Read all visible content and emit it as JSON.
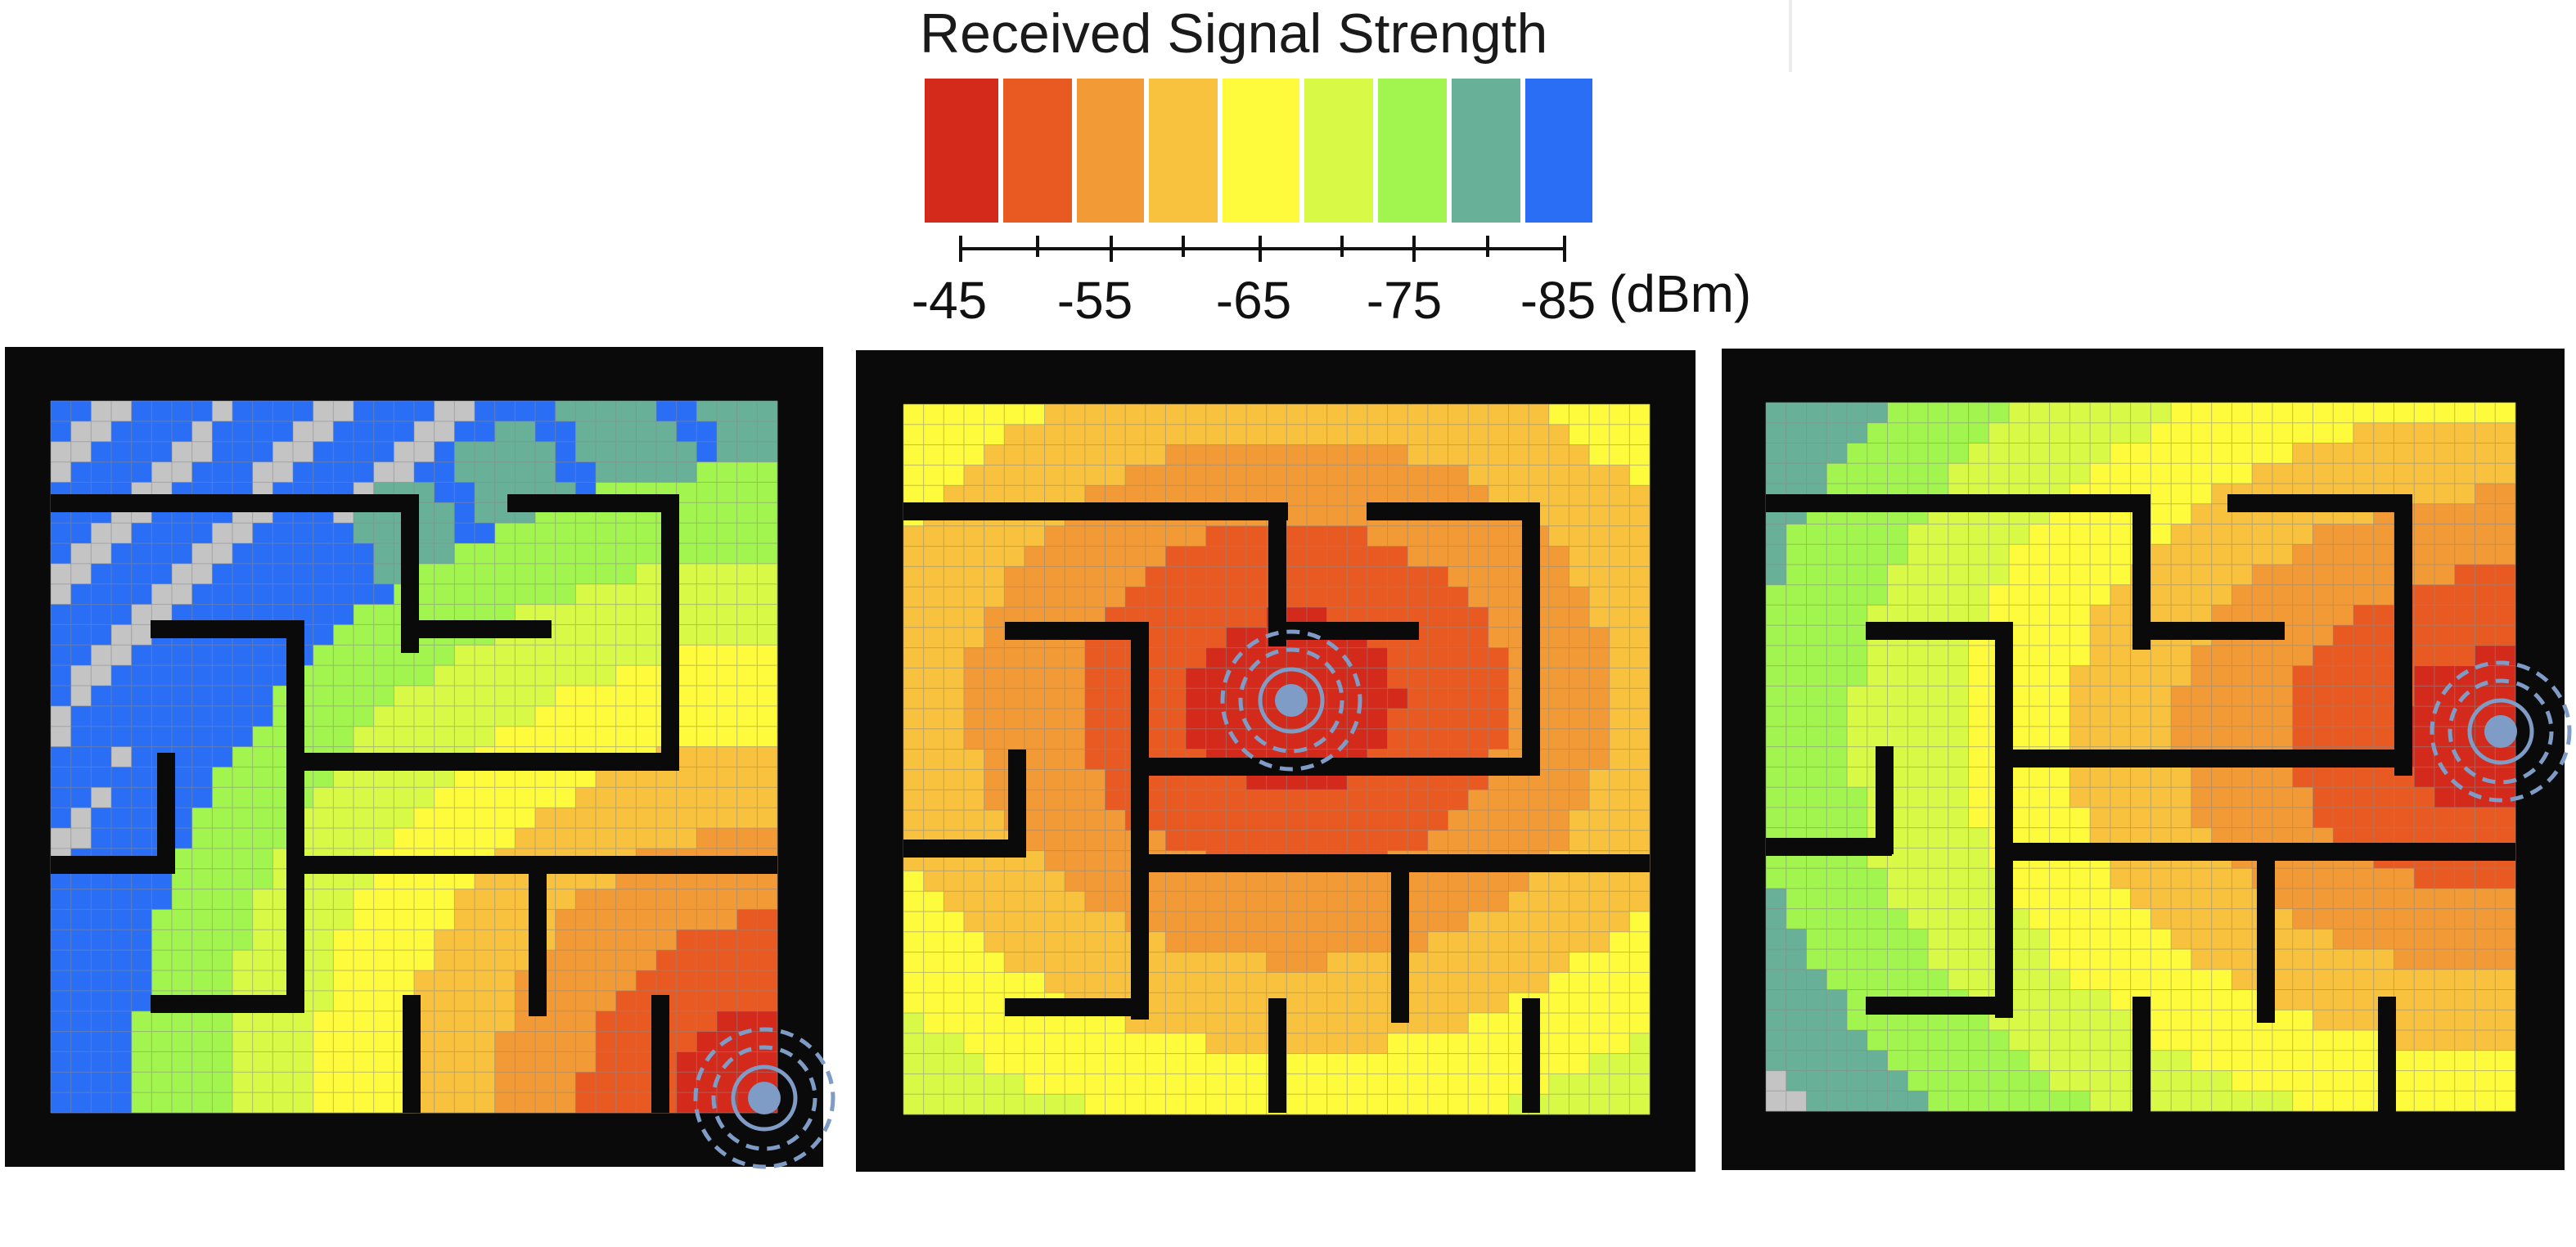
{
  "legend": {
    "title": "Received Signal Strength",
    "unit": "(dBm)",
    "ticks": [
      "-45",
      "-55",
      "-65",
      "-75",
      "-85"
    ],
    "colors": [
      "#d42a1c",
      "#e85a22",
      "#f29a36",
      "#f8c23e",
      "#fefa3c",
      "#d8fa46",
      "#a2f44e",
      "#68b098",
      "#2a6ef6"
    ]
  },
  "colors": {
    "wall": "#0a0a0a",
    "grid_line": "#8a8a8a",
    "no_signal": "#c4c4c4",
    "transmitter": "#7f9cc6",
    "transmitter_ring": "#7f9cc6"
  },
  "maps": [
    {
      "name": "heatmap-left",
      "transmitter_location": "bottom-right"
    },
    {
      "name": "heatmap-center",
      "transmitter_location": "center"
    },
    {
      "name": "heatmap-right",
      "transmitter_location": "middle-right"
    }
  ]
}
